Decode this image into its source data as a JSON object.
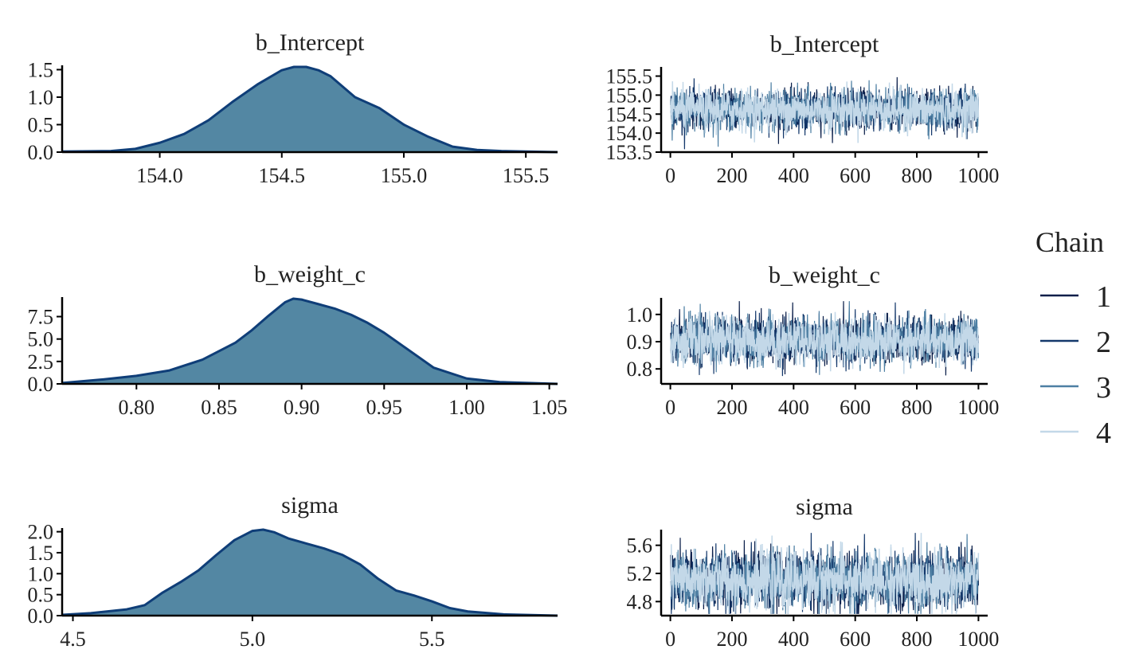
{
  "legend": {
    "title": "Chain",
    "entries": [
      {
        "label": "1",
        "color": "#0b1f4a"
      },
      {
        "label": "2",
        "color": "#14386b"
      },
      {
        "label": "3",
        "color": "#4d7fa3"
      },
      {
        "label": "4",
        "color": "#c3d8e8"
      }
    ]
  },
  "colors": {
    "density_fill": "#5387a3",
    "density_line": "#0f3e78",
    "axis": "#000000"
  },
  "chart_data": [
    {
      "type": "area",
      "title": "b_Intercept",
      "xlim": [
        153.6,
        155.63
      ],
      "ylim": [
        0,
        1.55
      ],
      "xticks": [
        154.0,
        154.5,
        155.0,
        155.5
      ],
      "xtick_labels": [
        "154.0",
        "154.5",
        "155.0",
        "155.5"
      ],
      "yticks": [
        0,
        0.5,
        1.0,
        1.5
      ],
      "ytick_labels": [
        "0.0",
        "0.5",
        "1.0",
        "1.5"
      ],
      "x": [
        153.6,
        153.8,
        153.9,
        154.0,
        154.1,
        154.2,
        154.3,
        154.4,
        154.5,
        154.55,
        154.6,
        154.65,
        154.7,
        154.8,
        154.9,
        155.0,
        155.1,
        155.2,
        155.3,
        155.4,
        155.5,
        155.63
      ],
      "y": [
        0.01,
        0.02,
        0.06,
        0.17,
        0.33,
        0.58,
        0.92,
        1.23,
        1.49,
        1.55,
        1.55,
        1.49,
        1.38,
        1.0,
        0.8,
        0.5,
        0.28,
        0.1,
        0.04,
        0.02,
        0.01,
        0.0
      ]
    },
    {
      "type": "line",
      "title": "b_Intercept",
      "xlim": [
        -30,
        1030
      ],
      "ylim": [
        153.5,
        155.7
      ],
      "xticks": [
        0,
        200,
        400,
        600,
        800,
        1000
      ],
      "xtick_labels": [
        "0",
        "200",
        "400",
        "600",
        "800",
        "1000"
      ],
      "yticks": [
        153.5,
        154.0,
        154.5,
        155.0,
        155.5
      ],
      "ytick_labels": [
        "153.5",
        "154.0",
        "154.5",
        "155.0",
        "155.5"
      ],
      "trace": {
        "iterations": 1000,
        "center": 154.62,
        "sd": 0.26
      },
      "series": [
        {
          "name": "1",
          "color": "#0b1f4a"
        },
        {
          "name": "2",
          "color": "#14386b"
        },
        {
          "name": "3",
          "color": "#4d7fa3"
        },
        {
          "name": "4",
          "color": "#c3d8e8"
        }
      ]
    },
    {
      "type": "area",
      "title": "b_weight_c",
      "xlim": [
        0.755,
        1.055
      ],
      "ylim": [
        0,
        9.5
      ],
      "xticks": [
        0.8,
        0.85,
        0.9,
        0.95,
        1.0,
        1.05
      ],
      "xtick_labels": [
        "0.80",
        "0.85",
        "0.90",
        "0.95",
        "1.00",
        "1.05"
      ],
      "yticks": [
        0,
        2.5,
        5.0,
        7.5
      ],
      "ytick_labels": [
        "0.0",
        "2.5",
        "5.0",
        "7.5"
      ],
      "x": [
        0.755,
        0.78,
        0.8,
        0.82,
        0.84,
        0.86,
        0.87,
        0.88,
        0.89,
        0.895,
        0.9,
        0.91,
        0.92,
        0.93,
        0.94,
        0.95,
        0.96,
        0.97,
        0.98,
        1.0,
        1.02,
        1.055
      ],
      "y": [
        0.1,
        0.5,
        0.9,
        1.5,
        2.7,
        4.6,
        6.0,
        7.6,
        9.1,
        9.5,
        9.4,
        8.9,
        8.4,
        7.7,
        6.8,
        5.7,
        4.4,
        3.1,
        1.8,
        0.6,
        0.2,
        0.0
      ]
    },
    {
      "type": "line",
      "title": "b_weight_c",
      "xlim": [
        -30,
        1030
      ],
      "ylim": [
        0.745,
        1.055
      ],
      "xticks": [
        0,
        200,
        400,
        600,
        800,
        1000
      ],
      "xtick_labels": [
        "0",
        "200",
        "400",
        "600",
        "800",
        "1000"
      ],
      "yticks": [
        0.8,
        0.9,
        1.0
      ],
      "ytick_labels": [
        "0.8",
        "0.9",
        "1.0"
      ],
      "trace": {
        "iterations": 1000,
        "center": 0.905,
        "sd": 0.042
      },
      "series": [
        {
          "name": "1",
          "color": "#0b1f4a"
        },
        {
          "name": "2",
          "color": "#14386b"
        },
        {
          "name": "3",
          "color": "#4d7fa3"
        },
        {
          "name": "4",
          "color": "#c3d8e8"
        }
      ]
    },
    {
      "type": "area",
      "title": "sigma",
      "xlim": [
        4.47,
        5.85
      ],
      "ylim": [
        0,
        2.05
      ],
      "xticks": [
        4.5,
        5.0,
        5.5
      ],
      "xtick_labels": [
        "4.5",
        "5.0",
        "5.5"
      ],
      "yticks": [
        0,
        0.5,
        1.0,
        1.5,
        2.0
      ],
      "ytick_labels": [
        "0.0",
        "0.5",
        "1.0",
        "1.5",
        "2.0"
      ],
      "x": [
        4.47,
        4.55,
        4.65,
        4.7,
        4.75,
        4.8,
        4.85,
        4.9,
        4.95,
        5.0,
        5.03,
        5.06,
        5.1,
        5.15,
        5.2,
        5.25,
        5.3,
        5.35,
        5.4,
        5.45,
        5.5,
        5.55,
        5.6,
        5.7,
        5.85
      ],
      "y": [
        0.02,
        0.06,
        0.15,
        0.25,
        0.55,
        0.8,
        1.08,
        1.45,
        1.8,
        2.02,
        2.05,
        1.99,
        1.84,
        1.72,
        1.6,
        1.45,
        1.22,
        0.88,
        0.6,
        0.48,
        0.34,
        0.18,
        0.1,
        0.03,
        0.0
      ]
    },
    {
      "type": "line",
      "title": "sigma",
      "xlim": [
        -30,
        1030
      ],
      "ylim": [
        4.6,
        5.8
      ],
      "xticks": [
        0,
        200,
        400,
        600,
        800,
        1000
      ],
      "xtick_labels": [
        "0",
        "200",
        "400",
        "600",
        "800",
        "1000"
      ],
      "yticks": [
        4.8,
        5.2,
        5.6
      ],
      "ytick_labels": [
        "4.8",
        "5.2",
        "5.6"
      ],
      "trace": {
        "iterations": 1000,
        "center": 5.1,
        "sd": 0.2
      },
      "series": [
        {
          "name": "1",
          "color": "#0b1f4a"
        },
        {
          "name": "2",
          "color": "#14386b"
        },
        {
          "name": "3",
          "color": "#4d7fa3"
        },
        {
          "name": "4",
          "color": "#c3d8e8"
        }
      ]
    }
  ]
}
